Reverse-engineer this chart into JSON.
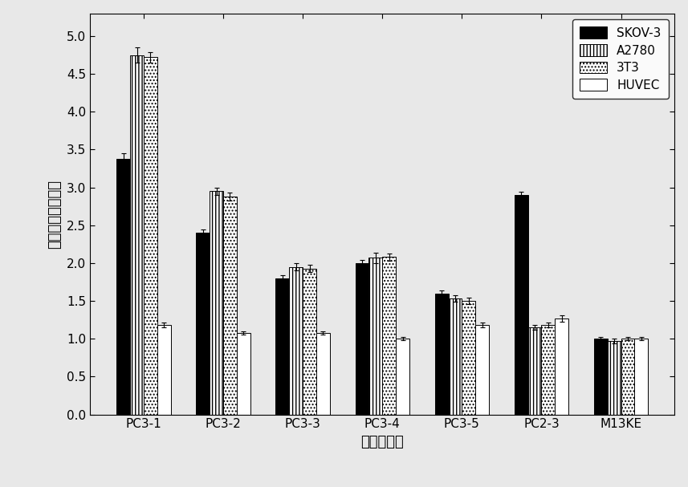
{
  "categories": [
    "PC3-1",
    "PC3-2",
    "PC3-3",
    "PC3-4",
    "PC3-5",
    "PC2-3",
    "M13KE"
  ],
  "series": {
    "SKOV-3": [
      3.38,
      2.4,
      1.8,
      2.0,
      1.6,
      2.9,
      1.0
    ],
    "A2780": [
      4.75,
      2.95,
      1.95,
      2.07,
      1.53,
      1.15,
      0.97
    ],
    "3T3": [
      4.72,
      2.88,
      1.93,
      2.08,
      1.5,
      1.18,
      1.0
    ],
    "HUVEC": [
      1.18,
      1.08,
      1.08,
      1.0,
      1.18,
      1.27,
      1.0
    ]
  },
  "errors": {
    "SKOV-3": [
      0.07,
      0.04,
      0.04,
      0.04,
      0.04,
      0.04,
      0.02
    ],
    "A2780": [
      0.1,
      0.05,
      0.05,
      0.07,
      0.04,
      0.03,
      0.03
    ],
    "3T3": [
      0.07,
      0.05,
      0.05,
      0.05,
      0.04,
      0.03,
      0.02
    ],
    "HUVEC": [
      0.03,
      0.02,
      0.02,
      0.02,
      0.03,
      0.04,
      0.02
    ]
  },
  "series_order": [
    "SKOV-3",
    "A2780",
    "3T3",
    "HUVEC"
  ],
  "bar_colors": {
    "SKOV-3": "#000000",
    "A2780": "#ffffff",
    "3T3": "#ffffff",
    "HUVEC": "#ffffff"
  },
  "bar_hatches": {
    "SKOV-3": "",
    "A2780": "||||",
    "3T3": "....",
    "HUVEC": ""
  },
  "xlabel": "噬菌体克隆",
  "ylabel": "噬菌体的相对结合",
  "ylim": [
    0.0,
    5.3
  ],
  "yticks": [
    0.0,
    0.5,
    1.0,
    1.5,
    2.0,
    2.5,
    3.0,
    3.5,
    4.0,
    4.5,
    5.0
  ],
  "bar_width": 0.17,
  "legend_labels": [
    "SKOV-3",
    "A2780",
    "3T3",
    "HUVEC"
  ],
  "xlabel_fontsize": 13,
  "ylabel_fontsize": 13,
  "tick_fontsize": 11,
  "legend_fontsize": 11
}
